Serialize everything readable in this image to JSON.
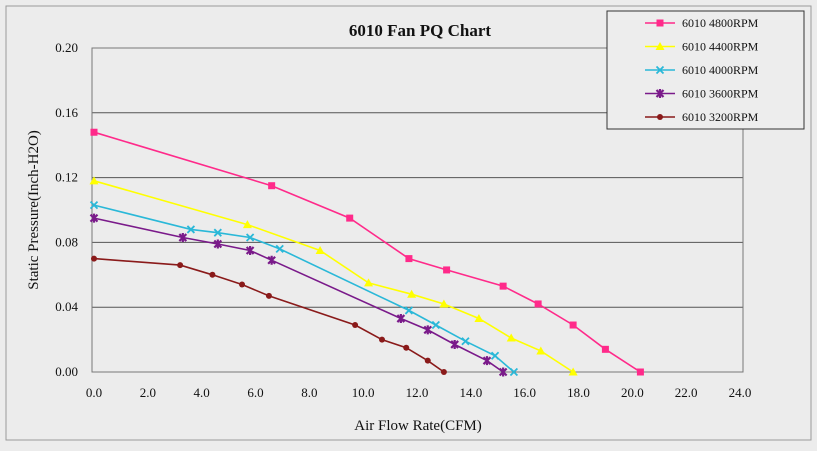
{
  "chart_data": {
    "type": "line",
    "title": "6010  Fan PQ Chart",
    "xlabel": "Air Flow Rate(CFM)",
    "ylabel": "Static Pressure(Inch-H2O)",
    "xlim": [
      0,
      24
    ],
    "ylim": [
      0,
      0.2
    ],
    "x_ticks": [
      "0.0",
      "2.0",
      "4.0",
      "6.0",
      "8.0",
      "10.0",
      "12.0",
      "14.0",
      "16.0",
      "18.0",
      "20.0",
      "22.0",
      "24.0"
    ],
    "y_ticks": [
      "0.00",
      "0.04",
      "0.08",
      "0.12",
      "0.16",
      "0.20"
    ],
    "grid": "horizontal",
    "legend_position": "top-right",
    "series": [
      {
        "name": "6010  4800RPM",
        "color": "#ff2a8a",
        "marker": "square",
        "points": [
          [
            0,
            0.148
          ],
          [
            6.6,
            0.115
          ],
          [
            9.5,
            0.095
          ],
          [
            11.7,
            0.07
          ],
          [
            13.1,
            0.063
          ],
          [
            15.2,
            0.053
          ],
          [
            16.5,
            0.042
          ],
          [
            17.8,
            0.029
          ],
          [
            19.0,
            0.014
          ],
          [
            20.3,
            0.0
          ]
        ]
      },
      {
        "name": "6010  4400RPM",
        "color": "#ffff00",
        "marker": "triangle",
        "points": [
          [
            0,
            0.118
          ],
          [
            5.7,
            0.091
          ],
          [
            8.4,
            0.075
          ],
          [
            10.2,
            0.055
          ],
          [
            11.8,
            0.048
          ],
          [
            13.0,
            0.042
          ],
          [
            14.3,
            0.033
          ],
          [
            15.5,
            0.021
          ],
          [
            16.6,
            0.013
          ],
          [
            17.8,
            0.0
          ]
        ]
      },
      {
        "name": "6010 4000RPM",
        "color": "#2ab8d8",
        "marker": "x",
        "points": [
          [
            0,
            0.103
          ],
          [
            3.6,
            0.088
          ],
          [
            4.6,
            0.086
          ],
          [
            5.8,
            0.083
          ],
          [
            6.9,
            0.076
          ],
          [
            11.7,
            0.038
          ],
          [
            12.7,
            0.029
          ],
          [
            13.8,
            0.019
          ],
          [
            14.9,
            0.01
          ],
          [
            15.6,
            0.0
          ]
        ]
      },
      {
        "name": "6010  3600RPM",
        "color": "#7a1a8a",
        "marker": "star",
        "points": [
          [
            0,
            0.095
          ],
          [
            3.3,
            0.083
          ],
          [
            4.6,
            0.079
          ],
          [
            5.8,
            0.075
          ],
          [
            6.6,
            0.069
          ],
          [
            11.4,
            0.033
          ],
          [
            12.4,
            0.026
          ],
          [
            13.4,
            0.017
          ],
          [
            14.6,
            0.007
          ],
          [
            15.2,
            0.0
          ]
        ]
      },
      {
        "name": "6010  3200RPM",
        "color": "#8a1a1a",
        "marker": "circle",
        "points": [
          [
            0,
            0.07
          ],
          [
            3.2,
            0.066
          ],
          [
            4.4,
            0.06
          ],
          [
            5.5,
            0.054
          ],
          [
            6.5,
            0.047
          ],
          [
            9.7,
            0.029
          ],
          [
            10.7,
            0.02
          ],
          [
            11.6,
            0.015
          ],
          [
            12.4,
            0.007
          ],
          [
            13.0,
            0.0
          ]
        ]
      }
    ]
  }
}
